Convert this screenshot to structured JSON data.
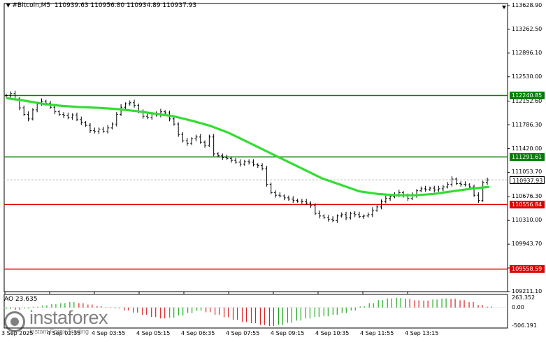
{
  "header": {
    "symbol": "#Bitcoin,M5",
    "ohlc": "110939.63 110956.80 110934.89 110937.93"
  },
  "indicator": {
    "label": "AO 23.635",
    "axis": [
      "263.352",
      "0.00",
      "-506.191"
    ]
  },
  "price_axis": [
    "113628.90",
    "113262.50",
    "112896.10",
    "112530.00",
    "112152.60",
    "111786.30",
    "111420.00",
    "111053.70",
    "110676.30",
    "110310.00",
    "109943.70",
    "109577.40",
    "109211.10"
  ],
  "levels": [
    {
      "label": "112240.85",
      "color": "#008000"
    },
    {
      "label": "111291.61",
      "color": "#008000"
    },
    {
      "label": "110556.84",
      "color": "#e00000"
    },
    {
      "label": "109558.59",
      "color": "#e00000"
    }
  ],
  "current_price": {
    "label": "110937.93",
    "color": "#000000"
  },
  "time_axis": [
    "3 Sep 2025",
    "4 Sep 02:35",
    "4 Sep 03:55",
    "4 Sep 05:15",
    "4 Sep 06:35",
    "4 Sep 07:55",
    "4 Sep 09:15",
    "4 Sep 10:35",
    "4 Sep 11:55",
    "4 Sep 13:15"
  ],
  "watermark": {
    "brand": "instaforex",
    "tagline": "Instant Forex Trading"
  },
  "chart_data": {
    "type": "line",
    "title": "#Bitcoin,M5",
    "ylim": [
      109211.1,
      113628.9
    ],
    "close": [
      112240,
      112270,
      112190,
      112050,
      111950,
      111880,
      112020,
      112110,
      112150,
      112120,
      112060,
      111990,
      111950,
      111930,
      111900,
      111940,
      111870,
      111820,
      111780,
      111700,
      111680,
      111720,
      111690,
      111740,
      111800,
      111950,
      112060,
      112110,
      112130,
      112090,
      111990,
      111920,
      111900,
      111960,
      111940,
      111990,
      111970,
      111880,
      111800,
      111640,
      111540,
      111500,
      111570,
      111600,
      111520,
      111470,
      111600,
      111340,
      111310,
      111280,
      111270,
      111240,
      111210,
      111180,
      111220,
      111210,
      111170,
      111160,
      111110,
      110870,
      110740,
      110700,
      110690,
      110660,
      110640,
      110620,
      110610,
      110600,
      110580,
      110540,
      110420,
      110380,
      110360,
      110330,
      110310,
      110380,
      110400,
      110350,
      110420,
      110400,
      110370,
      110380,
      110400,
      110470,
      110520,
      110600,
      110650,
      110680,
      110710,
      110740,
      110690,
      110650,
      110700,
      110770,
      110800,
      110790,
      110810,
      110780,
      110800,
      110830,
      110870,
      110950,
      110880,
      110870,
      110860,
      110830,
      110700,
      110620,
      110900,
      110937.93
    ],
    "moving_average": [
      112200,
      112160,
      112110,
      112080,
      112060,
      112050,
      112030,
      112000,
      111960,
      111920,
      111850,
      111770,
      111660,
      111520,
      111380,
      111240,
      111100,
      110960,
      110860,
      110760,
      110720,
      110700,
      110700,
      110720,
      110760,
      110800,
      110830
    ],
    "ao": {
      "ylim": [
        -506.191,
        263.352
      ],
      "values": [
        -40,
        -60,
        -30,
        20,
        60,
        90,
        120,
        150,
        120,
        80,
        40,
        10,
        -20,
        -80,
        -140,
        -200,
        -260,
        -300,
        -280,
        -220,
        -150,
        -90,
        -130,
        -200,
        -270,
        -340,
        -400,
        -430,
        -480,
        -506,
        -480,
        -420,
        -360,
        -300,
        -260,
        -240,
        -200,
        -150,
        -80,
        30,
        120,
        200,
        250,
        263,
        240,
        200,
        190,
        220,
        250,
        240,
        200,
        150,
        70,
        24
      ]
    }
  }
}
